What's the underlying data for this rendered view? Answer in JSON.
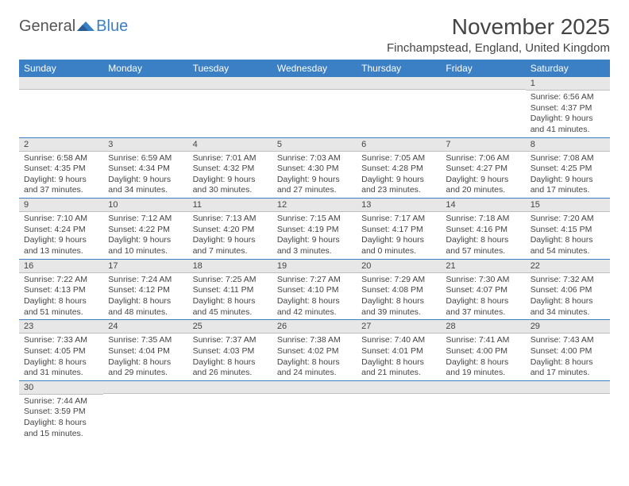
{
  "logo": {
    "general": "General",
    "blue": "Blue"
  },
  "title": "November 2025",
  "location": "Finchampstead, England, United Kingdom",
  "colors": {
    "header_bg": "#3b7fc4",
    "header_text": "#ffffff",
    "daynum_bg": "#e7e7e7",
    "border": "#3b7fc4",
    "text": "#444444"
  },
  "fonts": {
    "title_size": 28,
    "location_size": 15,
    "day_header_size": 12,
    "daynum_size": 11,
    "body_size": 10.5
  },
  "day_headers": [
    "Sunday",
    "Monday",
    "Tuesday",
    "Wednesday",
    "Thursday",
    "Friday",
    "Saturday"
  ],
  "weeks": [
    [
      null,
      null,
      null,
      null,
      null,
      null,
      {
        "n": "1",
        "sunrise": "6:56 AM",
        "sunset": "4:37 PM",
        "daylight": "9 hours and 41 minutes."
      }
    ],
    [
      {
        "n": "2",
        "sunrise": "6:58 AM",
        "sunset": "4:35 PM",
        "daylight": "9 hours and 37 minutes."
      },
      {
        "n": "3",
        "sunrise": "6:59 AM",
        "sunset": "4:34 PM",
        "daylight": "9 hours and 34 minutes."
      },
      {
        "n": "4",
        "sunrise": "7:01 AM",
        "sunset": "4:32 PM",
        "daylight": "9 hours and 30 minutes."
      },
      {
        "n": "5",
        "sunrise": "7:03 AM",
        "sunset": "4:30 PM",
        "daylight": "9 hours and 27 minutes."
      },
      {
        "n": "6",
        "sunrise": "7:05 AM",
        "sunset": "4:28 PM",
        "daylight": "9 hours and 23 minutes."
      },
      {
        "n": "7",
        "sunrise": "7:06 AM",
        "sunset": "4:27 PM",
        "daylight": "9 hours and 20 minutes."
      },
      {
        "n": "8",
        "sunrise": "7:08 AM",
        "sunset": "4:25 PM",
        "daylight": "9 hours and 17 minutes."
      }
    ],
    [
      {
        "n": "9",
        "sunrise": "7:10 AM",
        "sunset": "4:24 PM",
        "daylight": "9 hours and 13 minutes."
      },
      {
        "n": "10",
        "sunrise": "7:12 AM",
        "sunset": "4:22 PM",
        "daylight": "9 hours and 10 minutes."
      },
      {
        "n": "11",
        "sunrise": "7:13 AM",
        "sunset": "4:20 PM",
        "daylight": "9 hours and 7 minutes."
      },
      {
        "n": "12",
        "sunrise": "7:15 AM",
        "sunset": "4:19 PM",
        "daylight": "9 hours and 3 minutes."
      },
      {
        "n": "13",
        "sunrise": "7:17 AM",
        "sunset": "4:17 PM",
        "daylight": "9 hours and 0 minutes."
      },
      {
        "n": "14",
        "sunrise": "7:18 AM",
        "sunset": "4:16 PM",
        "daylight": "8 hours and 57 minutes."
      },
      {
        "n": "15",
        "sunrise": "7:20 AM",
        "sunset": "4:15 PM",
        "daylight": "8 hours and 54 minutes."
      }
    ],
    [
      {
        "n": "16",
        "sunrise": "7:22 AM",
        "sunset": "4:13 PM",
        "daylight": "8 hours and 51 minutes."
      },
      {
        "n": "17",
        "sunrise": "7:24 AM",
        "sunset": "4:12 PM",
        "daylight": "8 hours and 48 minutes."
      },
      {
        "n": "18",
        "sunrise": "7:25 AM",
        "sunset": "4:11 PM",
        "daylight": "8 hours and 45 minutes."
      },
      {
        "n": "19",
        "sunrise": "7:27 AM",
        "sunset": "4:10 PM",
        "daylight": "8 hours and 42 minutes."
      },
      {
        "n": "20",
        "sunrise": "7:29 AM",
        "sunset": "4:08 PM",
        "daylight": "8 hours and 39 minutes."
      },
      {
        "n": "21",
        "sunrise": "7:30 AM",
        "sunset": "4:07 PM",
        "daylight": "8 hours and 37 minutes."
      },
      {
        "n": "22",
        "sunrise": "7:32 AM",
        "sunset": "4:06 PM",
        "daylight": "8 hours and 34 minutes."
      }
    ],
    [
      {
        "n": "23",
        "sunrise": "7:33 AM",
        "sunset": "4:05 PM",
        "daylight": "8 hours and 31 minutes."
      },
      {
        "n": "24",
        "sunrise": "7:35 AM",
        "sunset": "4:04 PM",
        "daylight": "8 hours and 29 minutes."
      },
      {
        "n": "25",
        "sunrise": "7:37 AM",
        "sunset": "4:03 PM",
        "daylight": "8 hours and 26 minutes."
      },
      {
        "n": "26",
        "sunrise": "7:38 AM",
        "sunset": "4:02 PM",
        "daylight": "8 hours and 24 minutes."
      },
      {
        "n": "27",
        "sunrise": "7:40 AM",
        "sunset": "4:01 PM",
        "daylight": "8 hours and 21 minutes."
      },
      {
        "n": "28",
        "sunrise": "7:41 AM",
        "sunset": "4:00 PM",
        "daylight": "8 hours and 19 minutes."
      },
      {
        "n": "29",
        "sunrise": "7:43 AM",
        "sunset": "4:00 PM",
        "daylight": "8 hours and 17 minutes."
      }
    ],
    [
      {
        "n": "30",
        "sunrise": "7:44 AM",
        "sunset": "3:59 PM",
        "daylight": "8 hours and 15 minutes."
      },
      null,
      null,
      null,
      null,
      null,
      null
    ]
  ],
  "labels": {
    "sunrise": "Sunrise:",
    "sunset": "Sunset:",
    "daylight": "Daylight:"
  }
}
